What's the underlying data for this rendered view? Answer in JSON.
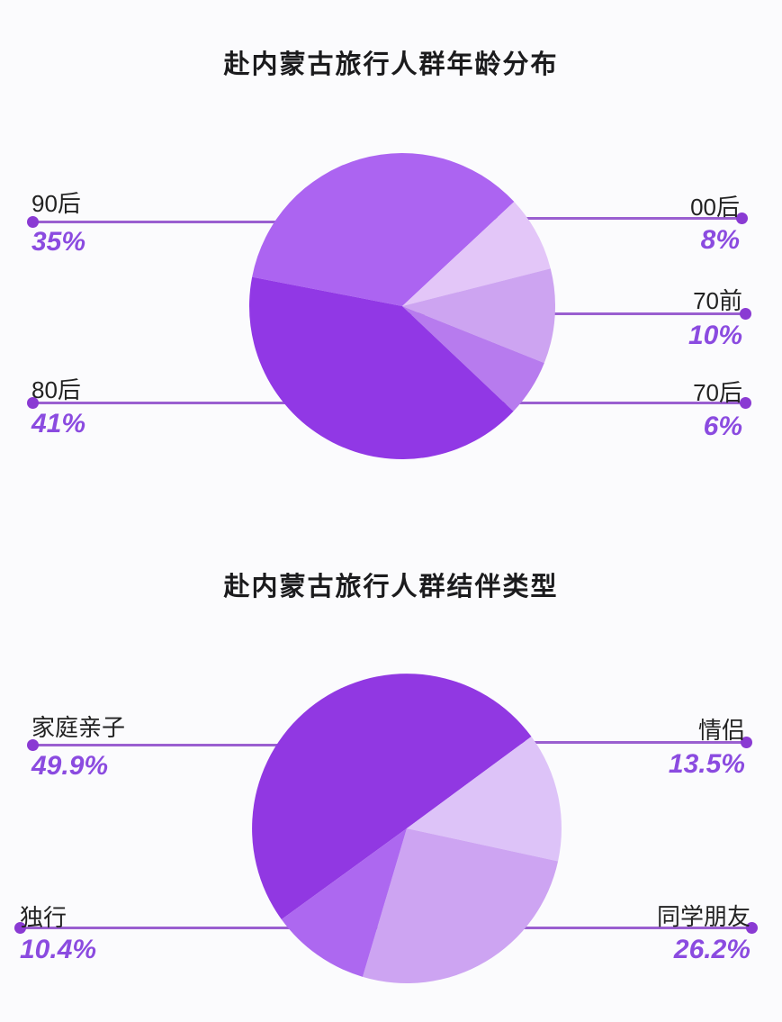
{
  "theme": {
    "background": "#fbfbfd",
    "title_color": "#1b1b1d",
    "label_color": "#222222",
    "percent_color": "#8b4be0",
    "line_color": "#9a5fd0",
    "dot_color": "#8a3ad3"
  },
  "chart_data": [
    {
      "type": "pie",
      "title": "赴内蒙古旅行人群年龄分布",
      "categories": [
        "90后",
        "00后",
        "70前",
        "70后",
        "80后"
      ],
      "values": [
        35,
        8,
        10,
        6,
        41
      ],
      "labels_pct": [
        "35%",
        "8%",
        "10%",
        "6%",
        "41%"
      ],
      "colors": [
        "#ac64f1",
        "#e3c6f8",
        "#cda4f1",
        "#b77bee",
        "#9138e5"
      ],
      "start_angle_deg": 281,
      "legend_position": "callout-lines-left-right",
      "grid": false
    },
    {
      "type": "pie",
      "title": "赴内蒙古旅行人群结伴类型",
      "categories": [
        "家庭亲子",
        "情侣",
        "同学朋友",
        "独行"
      ],
      "values": [
        49.9,
        13.5,
        26.2,
        10.4
      ],
      "labels_pct": [
        "49.9%",
        "13.5%",
        "26.2%",
        "10.4%"
      ],
      "colors": [
        "#9138e2",
        "#ddc3f8",
        "#cda4f2",
        "#ad68f0"
      ],
      "start_angle_deg": 234,
      "legend_position": "callout-lines-left-right",
      "grid": false
    }
  ]
}
